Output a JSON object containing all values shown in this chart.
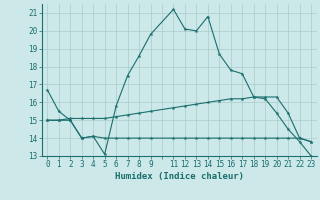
{
  "background_color": "#cce8e8",
  "grid_color": "#aacccc",
  "line_color": "#1a6e6e",
  "xlabel": "Humidex (Indice chaleur)",
  "xlim": [
    -0.5,
    23.5
  ],
  "ylim": [
    13,
    21.5
  ],
  "yticks": [
    13,
    14,
    15,
    16,
    17,
    18,
    19,
    20,
    21
  ],
  "line1_x": [
    0,
    1,
    2,
    3,
    4,
    5,
    6,
    7,
    8,
    9,
    11,
    12,
    13,
    14,
    15,
    16,
    17,
    18,
    19,
    20,
    21,
    22,
    23
  ],
  "line1_y": [
    16.7,
    15.5,
    15.0,
    14.0,
    14.1,
    13.1,
    15.8,
    17.5,
    18.6,
    19.8,
    21.2,
    20.1,
    20.0,
    20.8,
    18.7,
    17.8,
    17.6,
    16.3,
    16.2,
    15.4,
    14.5,
    13.8,
    13.0
  ],
  "line2_x": [
    0,
    1,
    2,
    3,
    4,
    5,
    6,
    7,
    8,
    9,
    11,
    12,
    13,
    14,
    15,
    16,
    17,
    18,
    19,
    20,
    21,
    22,
    23
  ],
  "line2_y": [
    15.0,
    15.0,
    15.1,
    15.1,
    15.1,
    15.1,
    15.2,
    15.3,
    15.4,
    15.5,
    15.7,
    15.8,
    15.9,
    16.0,
    16.1,
    16.2,
    16.2,
    16.3,
    16.3,
    16.3,
    15.4,
    14.0,
    13.8
  ],
  "line3_x": [
    0,
    1,
    2,
    3,
    4,
    5,
    6,
    7,
    8,
    9,
    11,
    12,
    13,
    14,
    15,
    16,
    17,
    18,
    19,
    20,
    21,
    22,
    23
  ],
  "line3_y": [
    15.0,
    15.0,
    15.0,
    14.0,
    14.1,
    14.0,
    14.0,
    14.0,
    14.0,
    14.0,
    14.0,
    14.0,
    14.0,
    14.0,
    14.0,
    14.0,
    14.0,
    14.0,
    14.0,
    14.0,
    14.0,
    14.0,
    13.8
  ]
}
